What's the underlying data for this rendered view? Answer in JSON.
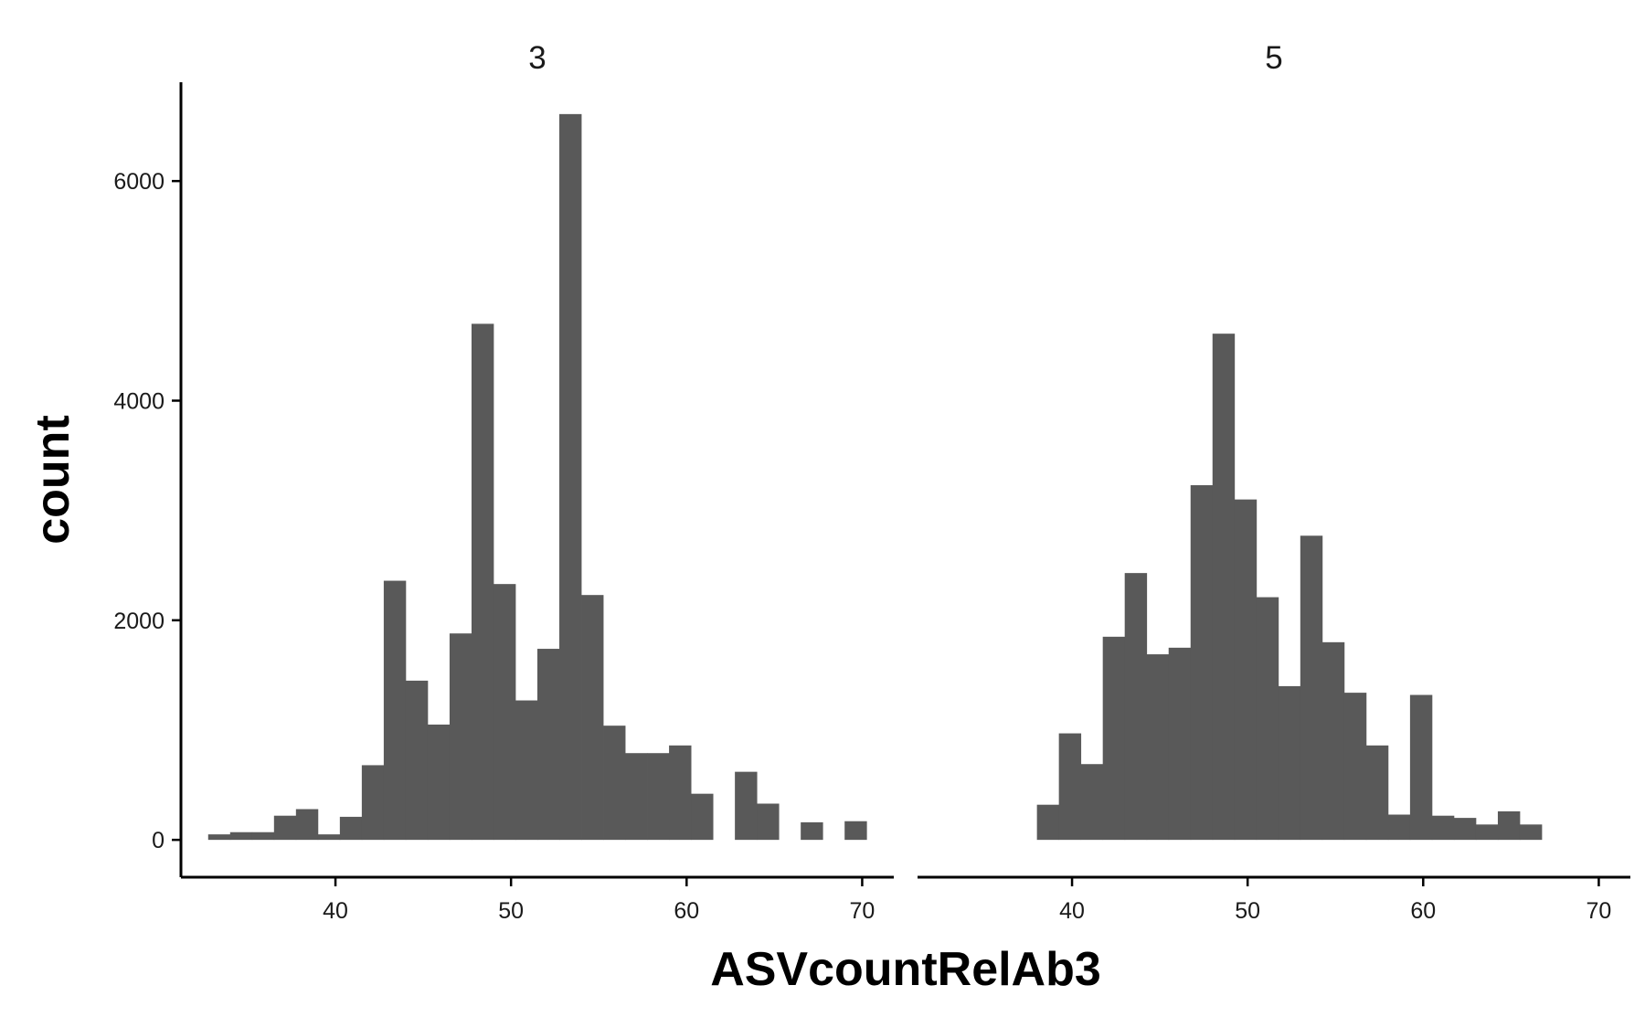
{
  "chart_data": {
    "type": "bar",
    "subtype": "faceted-histogram",
    "xlabel": "ASVcountRelAb3",
    "ylabel": "count",
    "xlim": [
      31.2,
      71.8
    ],
    "ylim": [
      -340,
      6900
    ],
    "x_ticks": [
      40,
      50,
      60,
      70
    ],
    "y_ticks": [
      0,
      2000,
      4000,
      6000
    ],
    "grid": false,
    "bar_color": "#595959",
    "bin_width": 1.25,
    "facets": [
      {
        "label": "3",
        "bins": [
          {
            "x0": 32.75,
            "x1": 34.0,
            "count": 50
          },
          {
            "x0": 34.0,
            "x1": 35.25,
            "count": 70
          },
          {
            "x0": 35.25,
            "x1": 36.5,
            "count": 70
          },
          {
            "x0": 36.5,
            "x1": 37.75,
            "count": 220
          },
          {
            "x0": 37.75,
            "x1": 39.0,
            "count": 280
          },
          {
            "x0": 39.0,
            "x1": 40.25,
            "count": 50
          },
          {
            "x0": 40.25,
            "x1": 41.5,
            "count": 210
          },
          {
            "x0": 41.5,
            "x1": 42.75,
            "count": 680
          },
          {
            "x0": 42.75,
            "x1": 44.0,
            "count": 2360
          },
          {
            "x0": 44.0,
            "x1": 45.25,
            "count": 1450
          },
          {
            "x0": 45.25,
            "x1": 46.5,
            "count": 1050
          },
          {
            "x0": 46.5,
            "x1": 47.75,
            "count": 1880
          },
          {
            "x0": 47.75,
            "x1": 49.0,
            "count": 4700
          },
          {
            "x0": 49.0,
            "x1": 50.25,
            "count": 2330
          },
          {
            "x0": 50.25,
            "x1": 51.5,
            "count": 1270
          },
          {
            "x0": 51.5,
            "x1": 52.75,
            "count": 1740
          },
          {
            "x0": 52.75,
            "x1": 54.0,
            "count": 6610
          },
          {
            "x0": 54.0,
            "x1": 55.25,
            "count": 2230
          },
          {
            "x0": 55.25,
            "x1": 56.5,
            "count": 1040
          },
          {
            "x0": 56.5,
            "x1": 57.75,
            "count": 790
          },
          {
            "x0": 57.75,
            "x1": 59.0,
            "count": 790
          },
          {
            "x0": 59.0,
            "x1": 60.25,
            "count": 860
          },
          {
            "x0": 60.25,
            "x1": 61.5,
            "count": 420
          },
          {
            "x0": 61.5,
            "x1": 62.75,
            "count": 0
          },
          {
            "x0": 62.75,
            "x1": 64.0,
            "count": 620
          },
          {
            "x0": 64.0,
            "x1": 65.25,
            "count": 330
          },
          {
            "x0": 65.25,
            "x1": 66.5,
            "count": 0
          },
          {
            "x0": 66.5,
            "x1": 67.75,
            "count": 160
          },
          {
            "x0": 67.75,
            "x1": 69.0,
            "count": 0
          },
          {
            "x0": 69.0,
            "x1": 70.25,
            "count": 170
          }
        ]
      },
      {
        "label": "5",
        "bins": [
          {
            "x0": 38.0,
            "x1": 39.25,
            "count": 320
          },
          {
            "x0": 39.25,
            "x1": 40.5,
            "count": 970
          },
          {
            "x0": 40.5,
            "x1": 41.75,
            "count": 690
          },
          {
            "x0": 41.75,
            "x1": 43.0,
            "count": 1850
          },
          {
            "x0": 43.0,
            "x1": 44.25,
            "count": 2430
          },
          {
            "x0": 44.25,
            "x1": 45.5,
            "count": 1690
          },
          {
            "x0": 45.5,
            "x1": 46.75,
            "count": 1750
          },
          {
            "x0": 46.75,
            "x1": 48.0,
            "count": 3230
          },
          {
            "x0": 48.0,
            "x1": 49.25,
            "count": 4610
          },
          {
            "x0": 49.25,
            "x1": 50.5,
            "count": 3100
          },
          {
            "x0": 50.5,
            "x1": 51.75,
            "count": 2210
          },
          {
            "x0": 51.75,
            "x1": 53.0,
            "count": 1400
          },
          {
            "x0": 53.0,
            "x1": 54.25,
            "count": 2770
          },
          {
            "x0": 54.25,
            "x1": 55.5,
            "count": 1800
          },
          {
            "x0": 55.5,
            "x1": 56.75,
            "count": 1340
          },
          {
            "x0": 56.75,
            "x1": 58.0,
            "count": 860
          },
          {
            "x0": 58.0,
            "x1": 59.25,
            "count": 230
          },
          {
            "x0": 59.25,
            "x1": 60.5,
            "count": 1320
          },
          {
            "x0": 60.5,
            "x1": 61.75,
            "count": 220
          },
          {
            "x0": 61.75,
            "x1": 63.0,
            "count": 200
          },
          {
            "x0": 63.0,
            "x1": 64.25,
            "count": 140
          },
          {
            "x0": 64.25,
            "x1": 65.5,
            "count": 260
          },
          {
            "x0": 65.5,
            "x1": 66.75,
            "count": 140
          }
        ]
      }
    ]
  }
}
